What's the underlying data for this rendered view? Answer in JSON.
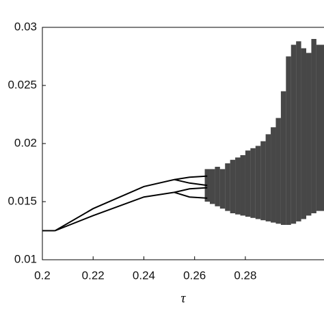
{
  "chart_data": {
    "type": "scatter",
    "x_label": "τ",
    "xlim": [
      0.2,
      0.311
    ],
    "xticks": [
      0.2,
      0.22,
      0.24,
      0.26,
      0.28
    ],
    "ylim": [
      0.01,
      0.03
    ],
    "yticks": [
      0.01,
      0.015,
      0.02,
      0.025,
      0.03
    ],
    "color": "#000000",
    "series": [
      {
        "x": [
          0.2,
          0.205
        ],
        "values": [
          0.0125,
          0.0125
        ]
      },
      {
        "x": [
          0.205,
          0.22,
          0.24,
          0.252
        ],
        "values": [
          0.0125,
          0.0144,
          0.0163,
          0.0169
        ]
      },
      {
        "x": [
          0.205,
          0.22,
          0.24,
          0.252
        ],
        "values": [
          0.0125,
          0.0138,
          0.0154,
          0.0158
        ]
      },
      {
        "x": [
          0.252,
          0.258,
          0.265
        ],
        "values": [
          0.0169,
          0.0171,
          0.0172
        ]
      },
      {
        "x": [
          0.252,
          0.258,
          0.265
        ],
        "values": [
          0.0169,
          0.0166,
          0.0164
        ]
      },
      {
        "x": [
          0.252,
          0.258,
          0.265
        ],
        "values": [
          0.0158,
          0.0161,
          0.0162
        ]
      },
      {
        "x": [
          0.252,
          0.258,
          0.265
        ],
        "values": [
          0.0158,
          0.0154,
          0.0153
        ]
      }
    ],
    "bands": {
      "x": [
        0.264,
        0.266,
        0.268,
        0.27,
        0.272,
        0.274,
        0.276,
        0.278,
        0.28,
        0.282,
        0.284,
        0.286,
        0.288,
        0.29,
        0.292,
        0.294,
        0.296,
        0.298,
        0.3,
        0.302,
        0.304,
        0.306,
        0.308
      ],
      "low": [
        0.015,
        0.0148,
        0.0146,
        0.0144,
        0.0142,
        0.014,
        0.0139,
        0.0138,
        0.0137,
        0.0136,
        0.0135,
        0.0134,
        0.0133,
        0.0132,
        0.0131,
        0.013,
        0.013,
        0.0131,
        0.0133,
        0.0135,
        0.0138,
        0.014,
        0.0142
      ],
      "high": [
        0.0178,
        0.0178,
        0.018,
        0.0178,
        0.0183,
        0.0186,
        0.0188,
        0.019,
        0.0194,
        0.0196,
        0.0198,
        0.0202,
        0.0208,
        0.0214,
        0.0222,
        0.0245,
        0.0275,
        0.0285,
        0.0288,
        0.0282,
        0.0278,
        0.029,
        0.0285
      ]
    }
  }
}
